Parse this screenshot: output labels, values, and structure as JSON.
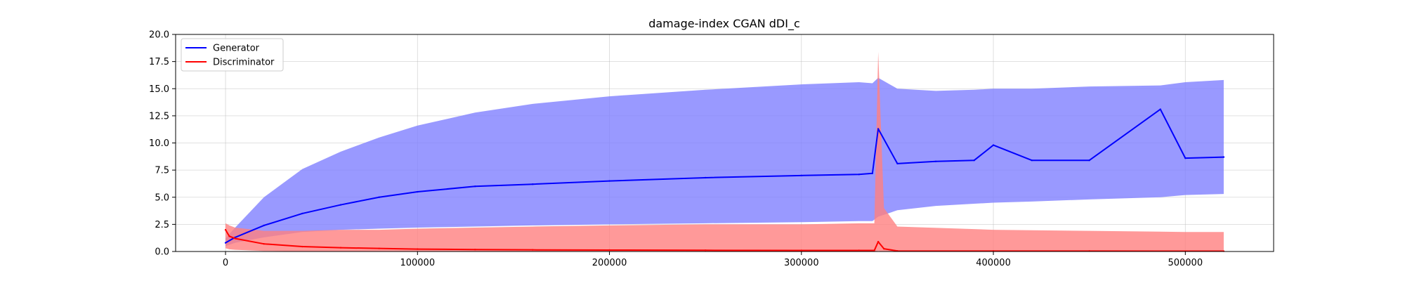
{
  "chart_data": {
    "type": "line",
    "title": "damage-index   CGAN    dDI_c",
    "xlabel": "",
    "ylabel": "",
    "xlim": [
      -26000,
      546000
    ],
    "ylim": [
      0,
      20
    ],
    "xticks": [
      0,
      100000,
      200000,
      300000,
      400000,
      500000
    ],
    "xtick_labels": [
      "0",
      "100000",
      "200000",
      "300000",
      "400000",
      "500000"
    ],
    "yticks": [
      0,
      2.5,
      5,
      7.5,
      10,
      12.5,
      15,
      17.5,
      20
    ],
    "ytick_labels": [
      "0.0",
      "2.5",
      "5.0",
      "7.5",
      "10.0",
      "12.5",
      "15.0",
      "17.5",
      "20.0"
    ],
    "grid": true,
    "legend": {
      "placement": "top-left",
      "entries": [
        "Generator",
        "Discriminator"
      ]
    },
    "series": [
      {
        "name": "Generator",
        "color": "#0000ff",
        "band_color": "#8080ff",
        "x": [
          0,
          5000,
          20000,
          40000,
          60000,
          80000,
          100000,
          130000,
          160000,
          200000,
          250000,
          300000,
          330000,
          337000,
          340000,
          350000,
          370000,
          390000,
          400000,
          420000,
          450000,
          487000,
          500000,
          520000
        ],
        "values": [
          0.8,
          1.3,
          2.4,
          3.5,
          4.3,
          5.0,
          5.5,
          6.0,
          6.2,
          6.5,
          6.8,
          7.0,
          7.1,
          7.2,
          11.3,
          8.1,
          8.3,
          8.4,
          9.8,
          8.4,
          8.4,
          13.1,
          8.6,
          8.7
        ],
        "band_lower": [
          0.5,
          0.8,
          1.3,
          1.8,
          2.0,
          2.1,
          2.2,
          2.3,
          2.4,
          2.5,
          2.6,
          2.7,
          2.8,
          2.8,
          3.2,
          3.8,
          4.2,
          4.4,
          4.5,
          4.6,
          4.8,
          5.0,
          5.2,
          5.3
        ],
        "band_upper": [
          1.2,
          2.2,
          5.0,
          7.6,
          9.2,
          10.5,
          11.6,
          12.8,
          13.6,
          14.3,
          14.9,
          15.4,
          15.6,
          15.5,
          16.0,
          15.0,
          14.8,
          14.9,
          15.0,
          15.0,
          15.2,
          15.3,
          15.6,
          15.8
        ]
      },
      {
        "name": "Discriminator",
        "color": "#ff0000",
        "band_color": "#ff8080",
        "x": [
          0,
          2000,
          5000,
          20000,
          40000,
          60000,
          80000,
          100000,
          130000,
          160000,
          200000,
          250000,
          300000,
          330000,
          338000,
          340000,
          343000,
          350000,
          400000,
          450000,
          500000,
          520000
        ],
        "values": [
          2.0,
          1.4,
          1.2,
          0.7,
          0.45,
          0.35,
          0.28,
          0.22,
          0.18,
          0.15,
          0.13,
          0.11,
          0.1,
          0.1,
          0.1,
          0.9,
          0.25,
          0.05,
          0.04,
          0.04,
          0.03,
          0.03
        ],
        "band_lower": [
          0.3,
          0.2,
          0.15,
          0.05,
          0.02,
          0.01,
          0.01,
          0.01,
          0.01,
          0.01,
          0.01,
          0.01,
          0.01,
          0.01,
          0.01,
          0.05,
          0.01,
          0.0,
          0.0,
          0.0,
          0.0,
          0.0
        ],
        "band_upper": [
          2.6,
          2.4,
          2.2,
          1.9,
          1.9,
          2.0,
          2.0,
          2.1,
          2.2,
          2.3,
          2.4,
          2.5,
          2.5,
          2.6,
          2.6,
          18.4,
          4.0,
          2.3,
          2.0,
          1.9,
          1.8,
          1.8
        ]
      }
    ]
  }
}
